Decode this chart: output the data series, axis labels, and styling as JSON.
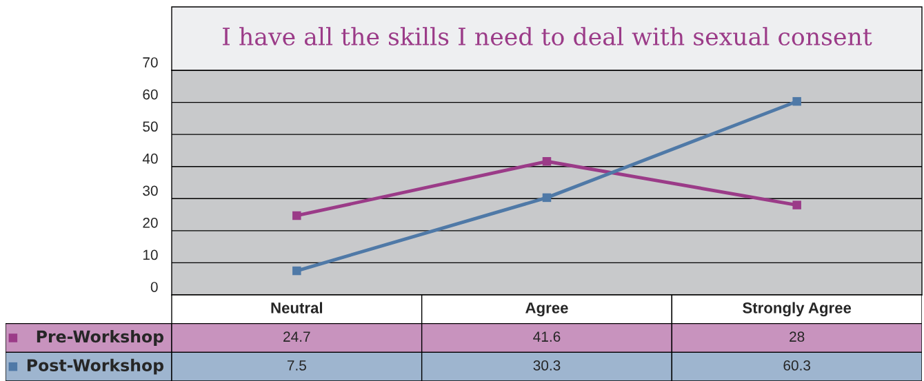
{
  "chart_data": {
    "type": "line",
    "title": "I have all the skills I need to deal with sexual consent",
    "categories": [
      "Neutral",
      "Agree",
      "Strongly Agree"
    ],
    "series": [
      {
        "name": "Pre-Workshop",
        "color": "#9b3b88",
        "values": [
          24.7,
          41.6,
          28
        ]
      },
      {
        "name": "Post-Workshop",
        "color": "#4f79a7",
        "values": [
          7.5,
          30.3,
          60.3
        ]
      }
    ],
    "ylim": [
      0,
      70
    ],
    "yticks": [
      0,
      10,
      20,
      30,
      40,
      50,
      60,
      70
    ],
    "grid": "y",
    "marker": "square",
    "line_style": "solid",
    "data_labels": true,
    "legend": "bottom left"
  }
}
